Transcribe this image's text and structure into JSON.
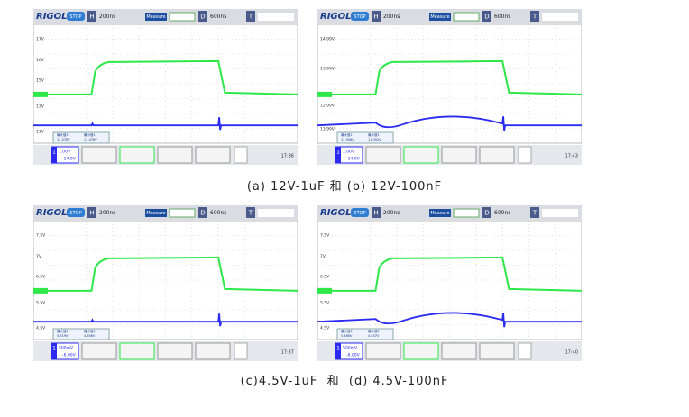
{
  "panels": [
    {
      "brand": "RIGOL",
      "status": "STOP",
      "h": "H",
      "timebase": "200ns",
      "mode": "Measure",
      "d": "D",
      "delay": "600ns",
      "t": "T",
      "y_labels": [
        "17V",
        "16V",
        "15V",
        "13V",
        "11V"
      ],
      "ch": "1",
      "ch1_scale": "1.00V",
      "ch1_offset": "-14.0V",
      "measures": [
        {
          "name": "最大值1",
          "value": "12.078V"
        },
        {
          "name": "最小值1",
          "value": "11.478V"
        }
      ],
      "time": "17:36"
    },
    {
      "brand": "RIGOL",
      "status": "STOP",
      "h": "H",
      "timebase": "200ns",
      "mode": "Measure",
      "d": "D",
      "delay": "600ns",
      "t": "T",
      "y_labels": [
        "14.99V",
        "13.99V",
        "12.99V",
        "11.99V"
      ],
      "ch": "1",
      "ch1_scale": "1.00V",
      "ch1_offset": "-14.0V",
      "measures": [
        {
          "name": "最大值1",
          "value": "12.906V"
        },
        {
          "name": "最小值1",
          "value": "11.392V"
        }
      ],
      "time": "17:43"
    },
    {
      "brand": "RIGOL",
      "status": "STOP",
      "h": "H",
      "timebase": "200ns",
      "mode": "Measure",
      "d": "D",
      "delay": "600ns",
      "t": "T",
      "y_labels": [
        "7.5V",
        "7V",
        "6.5V",
        "5.5V",
        "4.5V"
      ],
      "ch": "1",
      "ch1_scale": "500mV",
      "ch1_offset": "-6.00V",
      "measures": [
        {
          "name": "最大值1",
          "value": "5.519V"
        },
        {
          "name": "最小值1",
          "value": "4.656V"
        }
      ],
      "time": "17:37"
    },
    {
      "brand": "RIGOL",
      "status": "STOP",
      "h": "H",
      "timebase": "200ns",
      "mode": "Measure",
      "d": "D",
      "delay": "600ns",
      "t": "T",
      "y_labels": [
        "7.5V",
        "7V",
        "6.5V",
        "5.5V",
        "4.5V"
      ],
      "ch": "1",
      "ch1_scale": "500mV",
      "ch1_offset": "-6.00V",
      "measures": [
        {
          "name": "最大值1",
          "value": "5.466V"
        },
        {
          "name": "最小值1",
          "value": "4.637V"
        }
      ],
      "time": "17:40"
    }
  ],
  "captions": [
    "(a) 12V-1uF 和 (b) 12V-100nF",
    "(c)4.5V-1uF  和  (d) 4.5V-100nF"
  ]
}
